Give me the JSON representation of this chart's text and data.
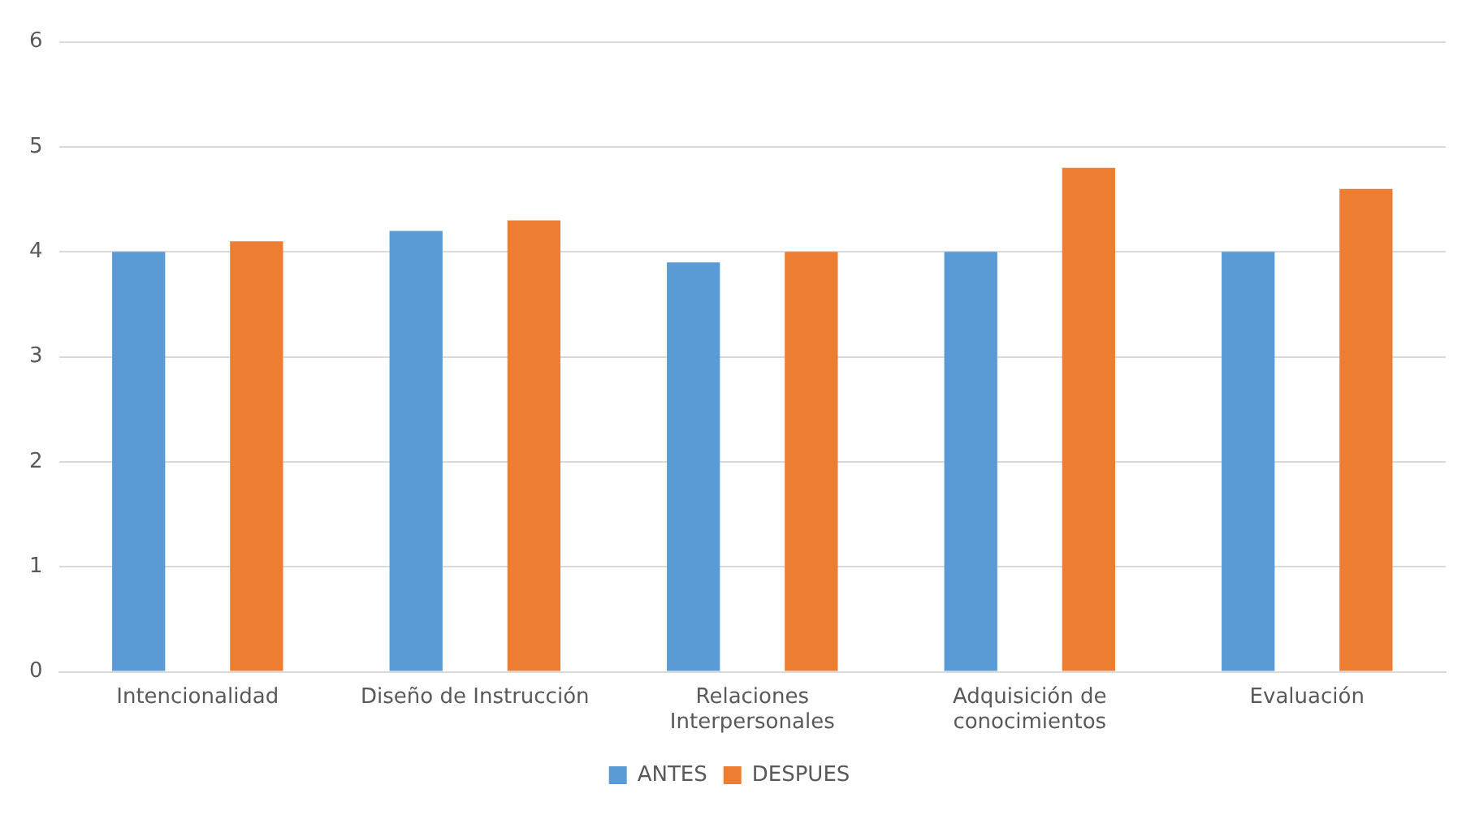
{
  "chart_data": {
    "type": "bar",
    "categories": [
      "Intencionalidad",
      "Diseño de Instrucción",
      "Relaciones Interpersonales",
      "Adquisición de conocimientos",
      "Evaluación"
    ],
    "series": [
      {
        "name": "ANTES",
        "color": "#5b9bd5",
        "values": [
          4.0,
          4.2,
          3.9,
          4.0,
          4.0
        ]
      },
      {
        "name": "DESPUES",
        "color": "#ed7d31",
        "values": [
          4.1,
          4.3,
          4.0,
          4.8,
          4.6
        ]
      }
    ],
    "ylim": [
      0,
      6
    ],
    "yticks": [
      0,
      1,
      2,
      3,
      4,
      5,
      6
    ],
    "grid": "y",
    "legend": "bottom"
  }
}
